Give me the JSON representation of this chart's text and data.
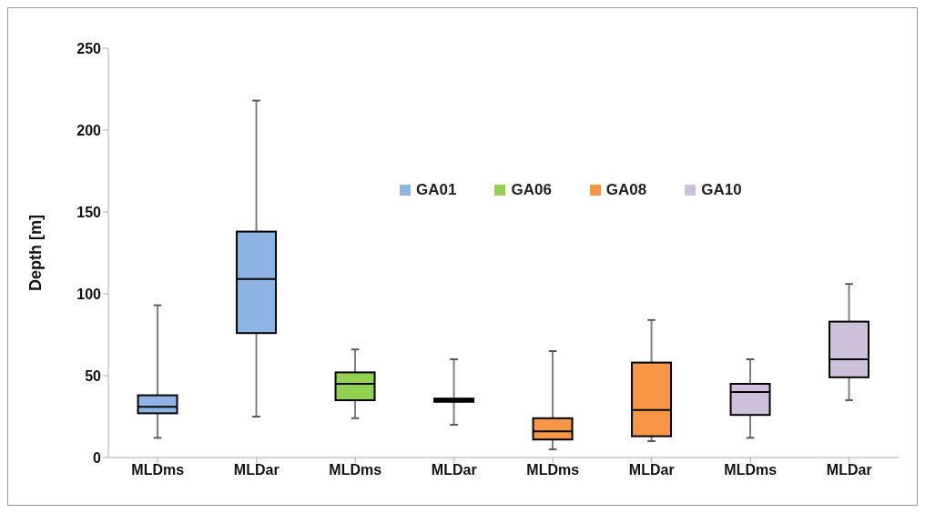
{
  "chart_data": {
    "type": "box",
    "ylabel": "Depth [m]",
    "categories": [
      "MLDms",
      "MLDar",
      "MLDms",
      "MLDar",
      "MLDms",
      "MLDar",
      "MLDms",
      "MLDar"
    ],
    "ylim": [
      0,
      250
    ],
    "yticks": [
      0,
      50,
      100,
      150,
      200,
      250
    ],
    "grid": false,
    "legend": "top right",
    "series": [
      {
        "name": "GA01",
        "color": "#8db4e2",
        "boxes": [
          {
            "low": 12,
            "q1": 27,
            "median": 31,
            "q3": 38,
            "high": 93
          },
          {
            "low": 25,
            "q1": 76,
            "median": 109,
            "q3": 138,
            "high": 218
          },
          null,
          null,
          null,
          null,
          null,
          null
        ]
      },
      {
        "name": "GA06",
        "color": "#92d050",
        "boxes": [
          null,
          null,
          {
            "low": 24,
            "q1": 35,
            "median": 45,
            "q3": 52,
            "high": 66
          },
          {
            "low": 20,
            "q1": 34,
            "median": 35,
            "q3": 36,
            "high": 60
          },
          null,
          null,
          null,
          null
        ]
      },
      {
        "name": "GA08",
        "color": "#f79646",
        "boxes": [
          null,
          null,
          null,
          null,
          {
            "low": 5,
            "q1": 11,
            "median": 16,
            "q3": 24,
            "high": 65
          },
          {
            "low": 10,
            "q1": 13,
            "median": 29,
            "q3": 58,
            "high": 84
          },
          null,
          null
        ]
      },
      {
        "name": "GA10",
        "color": "#ccc0da",
        "boxes": [
          null,
          null,
          null,
          null,
          null,
          null,
          {
            "low": 12,
            "q1": 26,
            "median": 40,
            "q3": 45,
            "high": 60
          },
          {
            "low": 35,
            "q1": 49,
            "median": 60,
            "q3": 83,
            "high": 106
          }
        ]
      }
    ]
  }
}
